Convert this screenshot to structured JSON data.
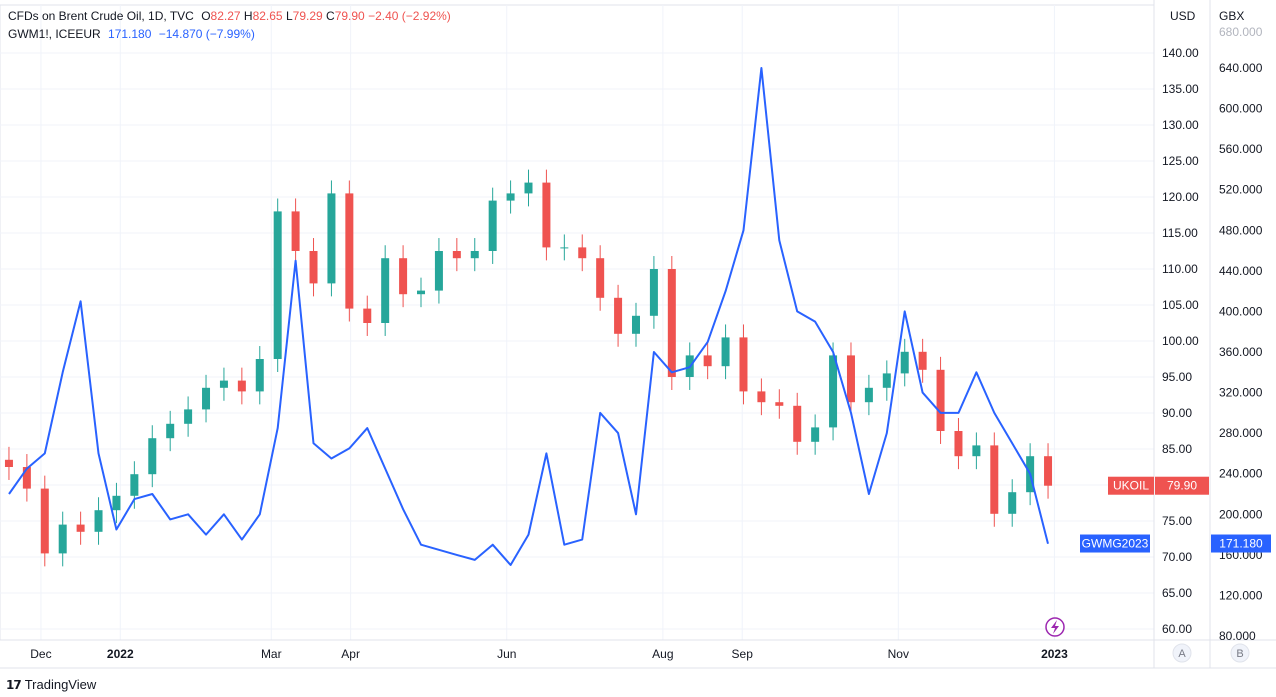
{
  "legend": {
    "row1": {
      "symbol": "CFDs on Brent Crude Oil, 1D, TVC",
      "o_label": "O",
      "o_value": "82.27",
      "h_label": "H",
      "h_value": "82.65",
      "l_label": "L",
      "l_value": "79.29",
      "c_label": "C",
      "c_value": "79.90",
      "change": "−2.40 (−2.92%)"
    },
    "row2": {
      "symbol": "GWM1!, ICEEUR",
      "value": "171.180",
      "change": "−14.870 (−7.99%)"
    }
  },
  "footer": {
    "brand": "TradingView",
    "logo": "tradingview-logo"
  },
  "chart_data": [
    {
      "type": "candlestick",
      "name": "UKOIL",
      "axis": "right (USD)",
      "axis_label": "USD",
      "ylim": [
        58,
        143
      ],
      "yticks": [
        "60.00",
        "65.00",
        "70.00",
        "75.00",
        "80.00",
        "85.00",
        "90.00",
        "95.00",
        "100.00",
        "105.00",
        "110.00",
        "115.00",
        "120.00",
        "125.00",
        "130.00",
        "135.00",
        "140.00"
      ],
      "last_value_label": "79.90",
      "up_color": "#26a69a",
      "down_color": "#ef5350",
      "x": [
        "2021-11-15",
        "2021-11-22",
        "2021-11-29",
        "2021-12-06",
        "2021-12-13",
        "2021-12-20",
        "2021-12-27",
        "2022-01-03",
        "2022-01-10",
        "2022-01-17",
        "2022-01-24",
        "2022-01-31",
        "2022-02-07",
        "2022-02-14",
        "2022-02-21",
        "2022-02-28",
        "2022-03-07",
        "2022-03-14",
        "2022-03-21",
        "2022-03-28",
        "2022-04-04",
        "2022-04-11",
        "2022-04-18",
        "2022-04-25",
        "2022-05-02",
        "2022-05-09",
        "2022-05-16",
        "2022-05-23",
        "2022-05-30",
        "2022-06-06",
        "2022-06-13",
        "2022-06-20",
        "2022-06-27",
        "2022-07-04",
        "2022-07-11",
        "2022-07-18",
        "2022-07-25",
        "2022-08-01",
        "2022-08-08",
        "2022-08-15",
        "2022-08-22",
        "2022-08-29",
        "2022-09-05",
        "2022-09-12",
        "2022-09-19",
        "2022-09-26",
        "2022-10-03",
        "2022-10-10",
        "2022-10-17",
        "2022-10-24",
        "2022-10-31",
        "2022-11-07",
        "2022-11-14",
        "2022-11-21",
        "2022-11-28",
        "2022-12-05",
        "2022-12-12",
        "2022-12-19",
        "2022-12-26"
      ],
      "values": [
        82.5,
        79.5,
        70.5,
        74.5,
        73.5,
        76.5,
        78.5,
        81.5,
        86.5,
        88.5,
        90.5,
        93.5,
        94.5,
        93.0,
        97.5,
        118.0,
        112.5,
        108.0,
        120.5,
        104.5,
        102.5,
        111.5,
        106.5,
        107.0,
        112.5,
        111.5,
        112.5,
        119.5,
        120.5,
        122.0,
        113.0,
        113.0,
        111.5,
        106.0,
        101.0,
        103.5,
        110.0,
        95.0,
        98.0,
        96.5,
        100.5,
        93.0,
        91.5,
        91.0,
        86.0,
        88.0,
        98.0,
        91.5,
        93.5,
        95.5,
        98.5,
        96.0,
        87.5,
        84.0,
        85.5,
        76.0,
        79.0,
        84.0,
        79.9
      ]
    },
    {
      "type": "line",
      "name": "GWMG2023",
      "axis": "left-overlay (GBX)",
      "axis_label": "GBX",
      "ylim": [
        75,
        685
      ],
      "yticks": [
        "80.000",
        "120.000",
        "160.000",
        "200.000",
        "240.000",
        "280.000",
        "320.000",
        "360.000",
        "400.000",
        "440.000",
        "480.000",
        "520.000",
        "560.000",
        "600.000",
        "640.000"
      ],
      "last_value_label": "171.180",
      "color": "#2962ff",
      "x": [
        "2021-11-15",
        "2021-11-22",
        "2021-11-29",
        "2021-12-06",
        "2021-12-13",
        "2021-12-20",
        "2021-12-27",
        "2022-01-03",
        "2022-01-10",
        "2022-01-17",
        "2022-01-24",
        "2022-01-31",
        "2022-02-07",
        "2022-02-14",
        "2022-02-21",
        "2022-02-28",
        "2022-03-07",
        "2022-03-14",
        "2022-03-21",
        "2022-03-28",
        "2022-04-04",
        "2022-04-11",
        "2022-04-18",
        "2022-04-25",
        "2022-05-02",
        "2022-05-09",
        "2022-05-16",
        "2022-05-23",
        "2022-05-30",
        "2022-06-06",
        "2022-06-13",
        "2022-06-20",
        "2022-06-27",
        "2022-07-04",
        "2022-07-11",
        "2022-07-18",
        "2022-07-25",
        "2022-08-01",
        "2022-08-08",
        "2022-08-15",
        "2022-08-22",
        "2022-08-29",
        "2022-09-05",
        "2022-09-12",
        "2022-09-19",
        "2022-09-26",
        "2022-10-03",
        "2022-10-10",
        "2022-10-17",
        "2022-10-24",
        "2022-10-31",
        "2022-11-07",
        "2022-11-14",
        "2022-11-21",
        "2022-11-28",
        "2022-12-05",
        "2022-12-12",
        "2022-12-19",
        "2022-12-26"
      ],
      "values": [
        220,
        245,
        260,
        340,
        410,
        260,
        185,
        215,
        220,
        195,
        200,
        180,
        200,
        175,
        200,
        285,
        450,
        270,
        255,
        265,
        285,
        245,
        205,
        170,
        165,
        160,
        155,
        170,
        150,
        180,
        260,
        170,
        175,
        300,
        280,
        200,
        360,
        340,
        345,
        370,
        420,
        480,
        640,
        470,
        400,
        390,
        360,
        300,
        220,
        280,
        400,
        320,
        300,
        300,
        340,
        300,
        270,
        240,
        171
      ]
    }
  ],
  "x_axis_labels": [
    "Dec",
    "2022",
    "Mar",
    "Apr",
    "Jun",
    "Aug",
    "Sep",
    "Nov",
    "2023"
  ],
  "x_axis_label_dates": [
    "2021-12-01",
    "2022-01-01",
    "2022-03-01",
    "2022-04-01",
    "2022-06-01",
    "2022-08-01",
    "2022-09-01",
    "2022-11-01",
    "2023-01-01"
  ],
  "price_tags": {
    "ukoil_name": "UKOIL",
    "ukoil_value": "79.90",
    "ukoil_color": "#ef5350",
    "gwm_name": "GWMG2023",
    "gwm_value": "171.180",
    "gwm_color": "#2962ff"
  },
  "scale_buttons": [
    "A",
    "B"
  ],
  "top_clipped_gbx_tick": "680.000"
}
